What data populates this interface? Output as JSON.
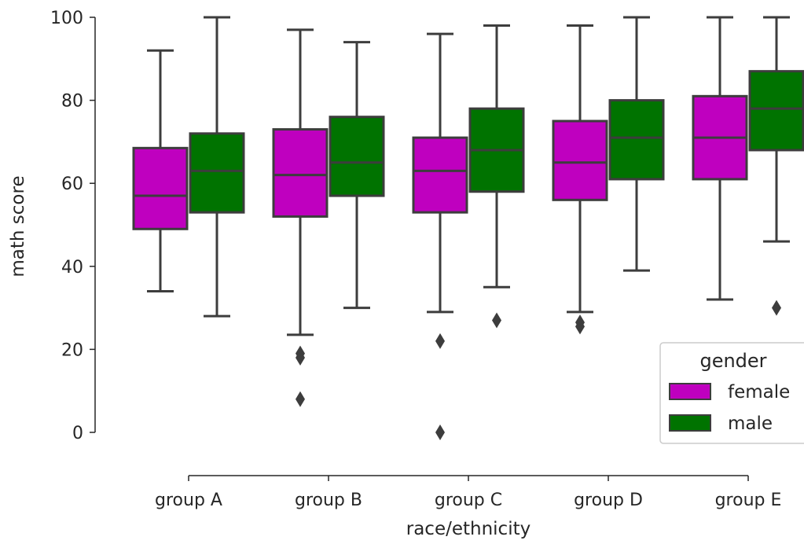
{
  "chart_data": {
    "type": "box",
    "xlabel": "race/ethnicity",
    "ylabel": "math score",
    "ylim": [
      0,
      100
    ],
    "yticks": [
      "0",
      "20",
      "40",
      "60",
      "80",
      "100"
    ],
    "categories": [
      "group A",
      "group B",
      "group C",
      "group D",
      "group E"
    ],
    "legend": {
      "title": "gender",
      "placement": "lower-right",
      "entries": [
        "female",
        "male"
      ]
    },
    "series": [
      {
        "name": "female",
        "color": "#bf00bf",
        "boxes": [
          {
            "whisker_low": 34,
            "q1": 49,
            "median": 57,
            "q3": 68.5,
            "whisker_high": 92,
            "outliers": []
          },
          {
            "whisker_low": 23.5,
            "q1": 52,
            "median": 62,
            "q3": 73,
            "whisker_high": 97,
            "outliers": [
              18,
              19,
              8
            ]
          },
          {
            "whisker_low": 29,
            "q1": 53,
            "median": 63,
            "q3": 71,
            "whisker_high": 96,
            "outliers": [
              22,
              0
            ]
          },
          {
            "whisker_low": 29,
            "q1": 56,
            "median": 65,
            "q3": 75,
            "whisker_high": 98,
            "outliers": [
              25.5,
              26.5
            ]
          },
          {
            "whisker_low": 32,
            "q1": 61,
            "median": 71,
            "q3": 81,
            "whisker_high": 100,
            "outliers": []
          }
        ]
      },
      {
        "name": "male",
        "color": "#007300",
        "boxes": [
          {
            "whisker_low": 28,
            "q1": 53,
            "median": 63,
            "q3": 72,
            "whisker_high": 100,
            "outliers": []
          },
          {
            "whisker_low": 30,
            "q1": 57,
            "median": 65,
            "q3": 76,
            "whisker_high": 94,
            "outliers": []
          },
          {
            "whisker_low": 35,
            "q1": 58,
            "median": 68,
            "q3": 78,
            "whisker_high": 98,
            "outliers": [
              27
            ]
          },
          {
            "whisker_low": 39,
            "q1": 61,
            "median": 71,
            "q3": 80,
            "whisker_high": 100,
            "outliers": []
          },
          {
            "whisker_low": 46,
            "q1": 68,
            "median": 78,
            "q3": 87,
            "whisker_high": 100,
            "outliers": [
              30
            ]
          }
        ]
      }
    ],
    "grid": false
  }
}
